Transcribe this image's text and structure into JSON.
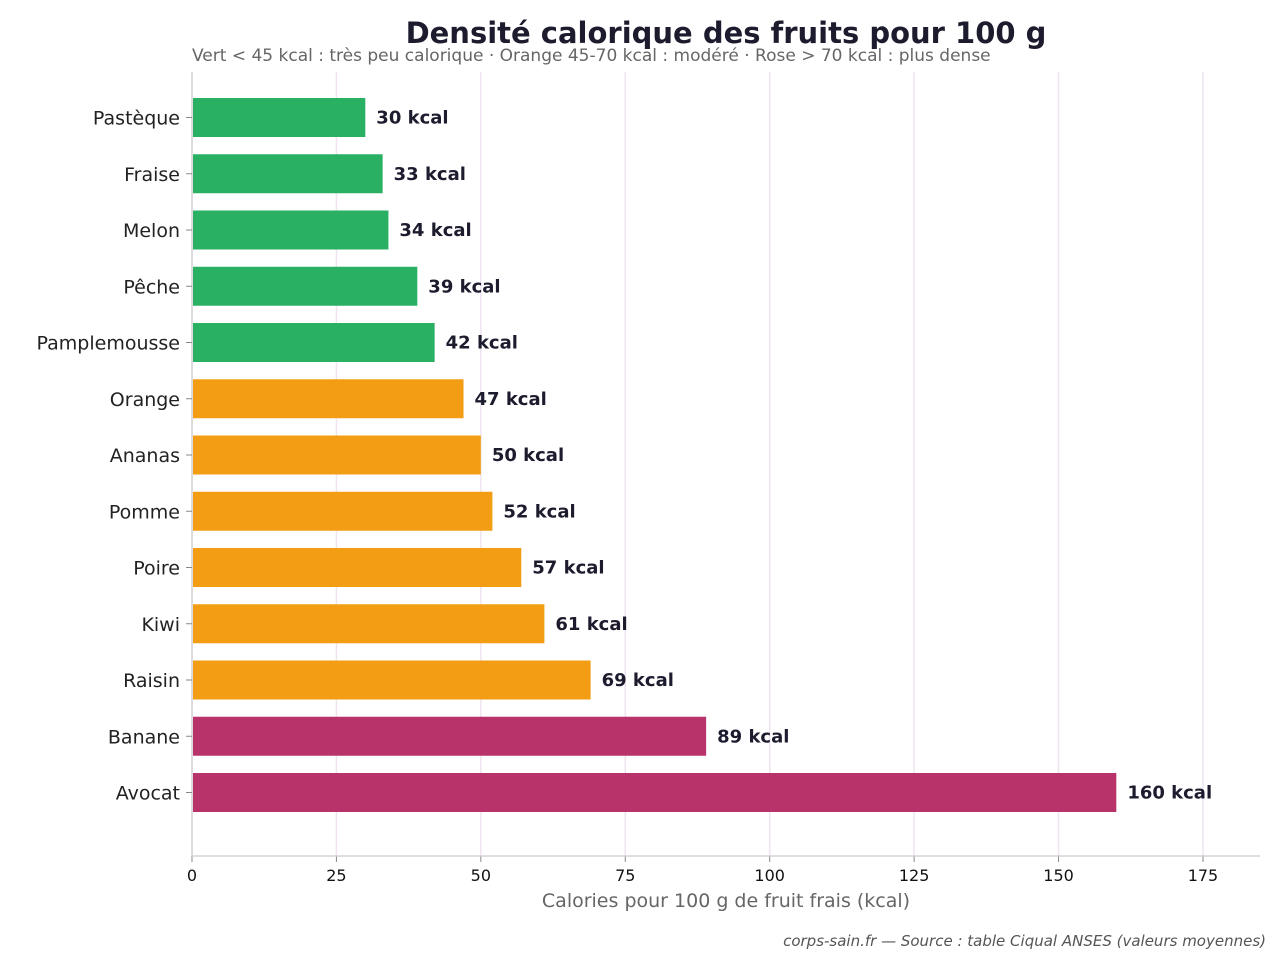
{
  "chart_data": {
    "type": "bar",
    "orientation": "horizontal",
    "title": "Densité calorique des fruits pour 100 g",
    "subtitle": "Vert < 45 kcal : très peu calorique  ·  Orange 45-70 kcal : modéré  ·  Rose > 70 kcal : plus dense",
    "xlabel": "Calories pour 100 g de fruit frais (kcal)",
    "ylabel": "",
    "source": "corps-sain.fr — Source : table Ciqual ANSES (valeurs moyennes)",
    "xlim": [
      0,
      185
    ],
    "xticks": [
      0,
      25,
      50,
      75,
      100,
      125,
      150,
      175
    ],
    "grid": true,
    "value_suffix": " kcal",
    "colors": {
      "low": "#29b063",
      "moderate": "#f29d13",
      "dense": "#b8336a"
    },
    "categories": [
      "Pastèque",
      "Fraise",
      "Melon",
      "Pêche",
      "Pamplemousse",
      "Orange",
      "Ananas",
      "Pomme",
      "Poire",
      "Kiwi",
      "Raisin",
      "Banane",
      "Avocat"
    ],
    "values": [
      30,
      33,
      34,
      39,
      42,
      47,
      50,
      52,
      57,
      61,
      69,
      89,
      160
    ],
    "value_labels": [
      "30 kcal",
      "33 kcal",
      "34 kcal",
      "39 kcal",
      "42 kcal",
      "47 kcal",
      "50 kcal",
      "52 kcal",
      "57 kcal",
      "61 kcal",
      "69 kcal",
      "89 kcal",
      "160 kcal"
    ],
    "groups": [
      "low",
      "low",
      "low",
      "low",
      "low",
      "moderate",
      "moderate",
      "moderate",
      "moderate",
      "moderate",
      "moderate",
      "dense",
      "dense"
    ]
  }
}
